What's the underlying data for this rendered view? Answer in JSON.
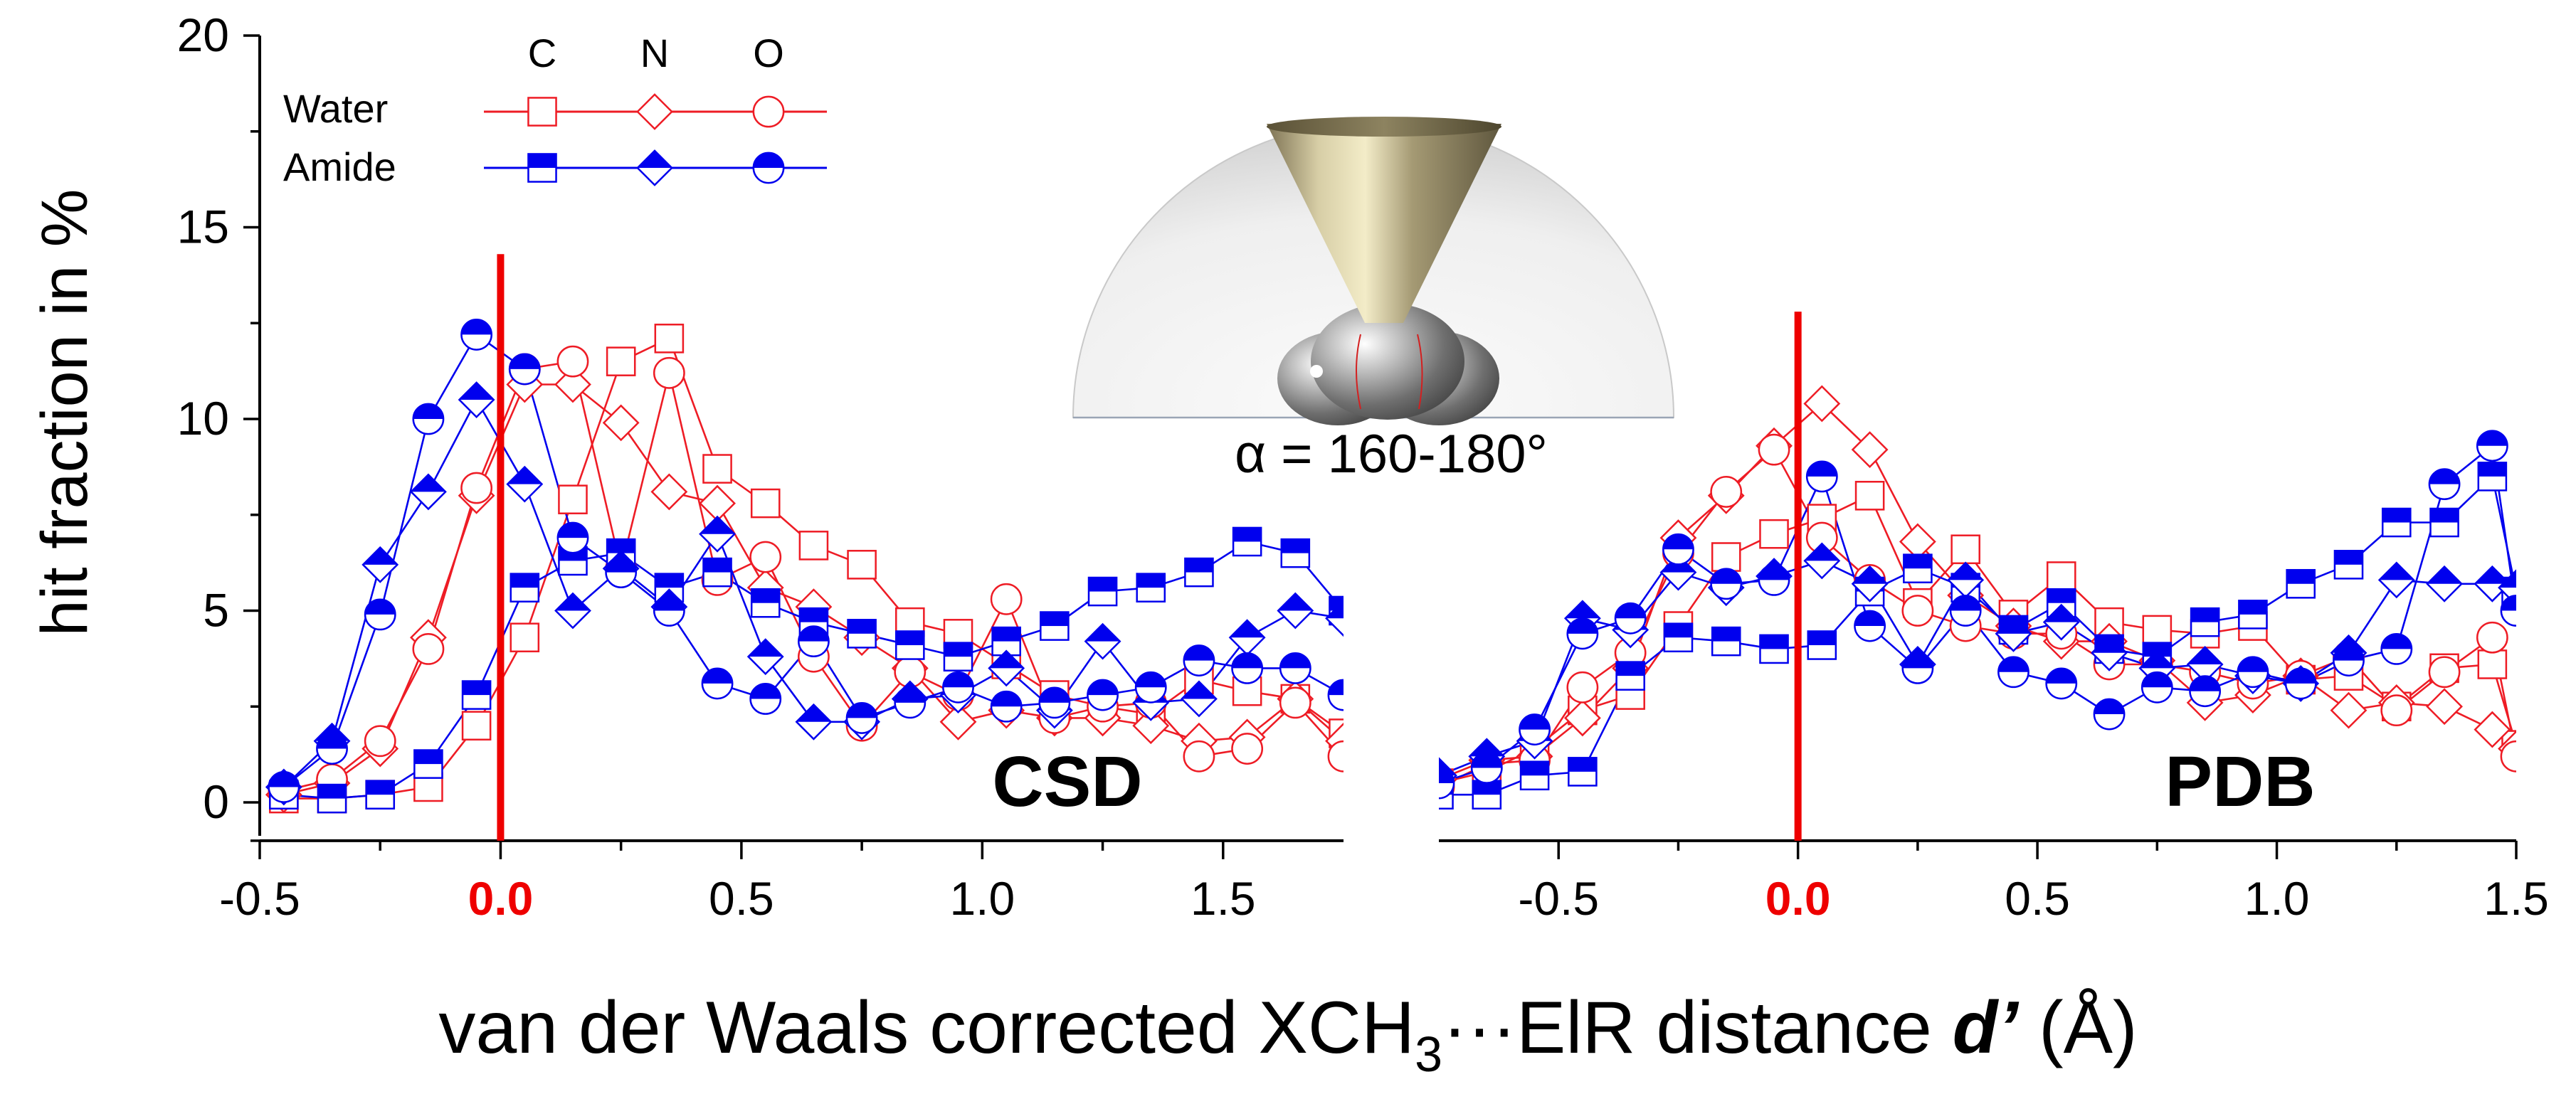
{
  "chart_data": {
    "type": "line",
    "ylabel": "hit fraction in %",
    "xlabel": {
      "prefix": "van der Waals corrected XCH",
      "subscript": "3",
      "middle": "···ElR distance ",
      "variable": "d’",
      "suffix": " (Å)"
    },
    "yaxis": {
      "range": [
        -1,
        20
      ],
      "ticks": [
        0,
        5,
        10,
        15,
        20
      ],
      "tick_labels": [
        "0",
        "5",
        "10",
        "15",
        "20"
      ]
    },
    "legend": {
      "columns": [
        "C",
        "N",
        "O"
      ],
      "rows": [
        "Water",
        "Amide"
      ],
      "position": "top-left"
    },
    "inset": {
      "label": "α = 160-180°",
      "description": "hemisphere with cone"
    },
    "colors": {
      "water": "#ee1c25",
      "amide": "#0000ee",
      "zero_line": "#ee0000"
    },
    "panels": [
      {
        "name": "CSD",
        "label": "CSD",
        "xlim": [
          -0.5,
          1.75
        ],
        "xticks": [
          -0.5,
          0.0,
          0.5,
          1.0,
          1.5
        ],
        "xtick_labels": [
          "-0.5",
          "0.0",
          "0.5",
          "1.0",
          "1.5"
        ],
        "zero_line_top": 14.3,
        "x": [
          -0.45,
          -0.35,
          -0.25,
          -0.15,
          -0.05,
          0.05,
          0.15,
          0.25,
          0.35,
          0.45,
          0.55,
          0.65,
          0.75,
          0.85,
          0.95,
          1.05,
          1.15,
          1.25,
          1.35,
          1.45,
          1.55,
          1.65,
          1.75
        ],
        "series": [
          {
            "name": "Water C",
            "group": "water",
            "marker": "square",
            "values": [
              0.1,
              0.1,
              0.2,
              0.4,
              2.0,
              4.3,
              7.9,
              11.5,
              12.1,
              8.7,
              7.8,
              6.7,
              6.2,
              4.7,
              4.4,
              3.6,
              2.8,
              2.5,
              2.3,
              3.2,
              2.9,
              2.7,
              1.8
            ]
          },
          {
            "name": "Water N",
            "group": "water",
            "marker": "diamond",
            "values": [
              0.2,
              0.5,
              1.4,
              4.3,
              8.0,
              10.9,
              10.9,
              9.9,
              8.1,
              7.8,
              5.6,
              5.1,
              4.3,
              3.5,
              2.1,
              2.4,
              2.2,
              2.2,
              2.0,
              1.6,
              1.7,
              2.7,
              1.6
            ]
          },
          {
            "name": "Water O",
            "group": "water",
            "marker": "circle",
            "values": [
              0.3,
              0.6,
              1.6,
              4.0,
              8.2,
              11.3,
              11.5,
              6.1,
              11.2,
              5.8,
              6.4,
              3.8,
              2.0,
              3.4,
              2.8,
              5.3,
              2.2,
              2.5,
              2.6,
              1.2,
              1.4,
              2.6,
              1.2
            ]
          },
          {
            "name": "Amide C",
            "group": "amide",
            "marker": "square",
            "values": [
              0.2,
              0.1,
              0.2,
              1.0,
              2.8,
              5.6,
              6.3,
              6.5,
              5.6,
              6.0,
              5.2,
              4.7,
              4.4,
              4.1,
              3.8,
              4.2,
              4.6,
              5.5,
              5.6,
              6.0,
              6.8,
              6.5,
              5.0
            ]
          },
          {
            "name": "Amide N",
            "group": "amide",
            "marker": "diamond",
            "values": [
              0.4,
              1.6,
              6.2,
              8.1,
              10.5,
              8.3,
              5.0,
              6.1,
              5.1,
              7.0,
              3.8,
              2.1,
              2.1,
              2.7,
              2.8,
              3.5,
              2.4,
              4.2,
              2.6,
              2.7,
              4.3,
              5.0,
              4.8
            ]
          },
          {
            "name": "Amide O",
            "group": "amide",
            "marker": "circle",
            "values": [
              0.4,
              1.4,
              4.9,
              10.0,
              12.2,
              11.3,
              6.9,
              6.0,
              5.0,
              3.1,
              2.7,
              4.2,
              2.2,
              2.6,
              3.0,
              2.5,
              2.6,
              2.8,
              3.0,
              3.7,
              3.5,
              3.5,
              2.8
            ]
          }
        ]
      },
      {
        "name": "PDB",
        "label": "PDB",
        "xlim": [
          -0.75,
          1.5
        ],
        "xticks": [
          -0.5,
          0.0,
          0.5,
          1.0,
          1.5
        ],
        "xtick_labels": [
          "-0.5",
          "0.0",
          "0.5",
          "1.0",
          "1.5"
        ],
        "zero_line_top": 12.8,
        "x": [
          -0.75,
          -0.65,
          -0.55,
          -0.45,
          -0.35,
          -0.25,
          -0.15,
          -0.05,
          0.05,
          0.15,
          0.25,
          0.35,
          0.45,
          0.55,
          0.65,
          0.75,
          0.85,
          0.95,
          1.05,
          1.15,
          1.25,
          1.35,
          1.45,
          1.5
        ],
        "series": [
          {
            "name": "Water C",
            "group": "water",
            "marker": "square",
            "values": [
              0.5,
              0.8,
              1.4,
              2.4,
              2.8,
              4.6,
              6.4,
              7.0,
              7.4,
              8.0,
              5.2,
              6.6,
              4.9,
              5.9,
              4.7,
              4.5,
              4.4,
              4.6,
              3.2,
              3.3,
              2.5,
              3.5,
              3.6,
              1.5
            ]
          },
          {
            "name": "Water N",
            "group": "water",
            "marker": "diamond",
            "values": [
              0.6,
              1.1,
              1.2,
              2.2,
              3.5,
              6.9,
              8.0,
              9.3,
              10.4,
              9.2,
              6.8,
              5.4,
              4.6,
              4.2,
              4.2,
              3.7,
              2.6,
              2.8,
              3.3,
              2.4,
              2.6,
              2.5,
              1.9,
              1.4
            ]
          },
          {
            "name": "Water O",
            "group": "water",
            "marker": "circle",
            "values": [
              0.4,
              1.0,
              1.1,
              3.0,
              3.9,
              6.5,
              8.1,
              9.2,
              6.9,
              5.8,
              5.0,
              4.6,
              4.4,
              4.4,
              3.6,
              3.6,
              3.4,
              3.1,
              3.3,
              3.8,
              2.4,
              3.4,
              4.3,
              1.2
            ]
          },
          {
            "name": "Amide C",
            "group": "amide",
            "marker": "square",
            "values": [
              0.2,
              0.2,
              0.7,
              0.8,
              3.3,
              4.3,
              4.2,
              4.0,
              4.1,
              5.5,
              6.1,
              5.6,
              4.5,
              5.2,
              4.0,
              3.8,
              4.7,
              4.9,
              5.7,
              6.2,
              7.3,
              7.3,
              8.5,
              5.5
            ]
          },
          {
            "name": "Amide N",
            "group": "amide",
            "marker": "diamond",
            "values": [
              0.7,
              1.2,
              1.6,
              4.8,
              4.5,
              6.0,
              5.6,
              5.9,
              6.3,
              5.7,
              3.6,
              5.8,
              4.4,
              4.7,
              3.9,
              3.5,
              3.6,
              3.3,
              3.1,
              3.9,
              5.8,
              5.7,
              5.7,
              5.6
            ]
          },
          {
            "name": "Amide O",
            "group": "amide",
            "marker": "circle",
            "values": [
              0.5,
              0.9,
              1.9,
              4.4,
              4.8,
              6.6,
              5.7,
              5.8,
              8.5,
              4.6,
              3.5,
              5.0,
              3.4,
              3.1,
              2.3,
              3.0,
              2.9,
              3.4,
              3.1,
              3.7,
              4.0,
              8.3,
              9.3,
              5.0
            ]
          }
        ]
      }
    ]
  }
}
